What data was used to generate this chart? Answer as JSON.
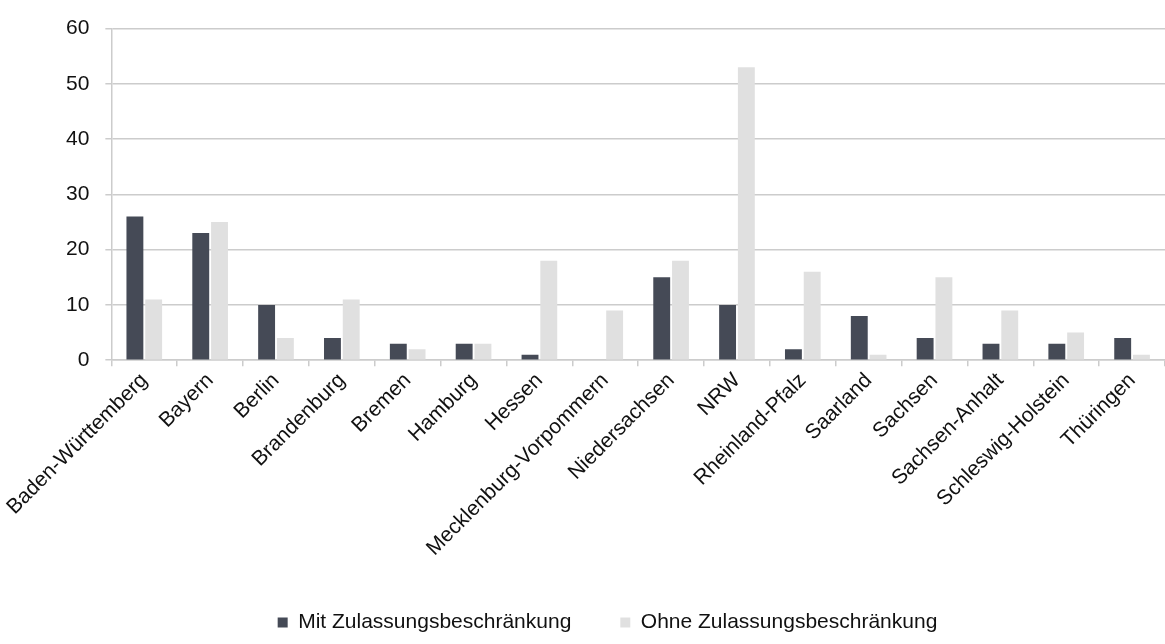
{
  "chart_data": {
    "type": "bar",
    "categories": [
      "Baden-Württemberg",
      "Bayern",
      "Berlin",
      "Brandenburg",
      "Bremen",
      "Hamburg",
      "Hessen",
      "Mecklenburg-Vorpommern",
      "Niedersachsen",
      "NRW",
      "Rheinland-Pfalz",
      "Saarland",
      "Sachsen",
      "Sachsen-Anhalt",
      "Schleswig-Holstein",
      "Thüringen"
    ],
    "series": [
      {
        "name": "Mit Zulassungsbeschränkung",
        "color": "#454a56",
        "values": [
          26,
          23,
          10,
          4,
          3,
          3,
          1,
          0,
          15,
          10,
          2,
          8,
          4,
          3,
          3,
          4
        ]
      },
      {
        "name": "Ohne Zulassungsbeschränkung",
        "color": "#e0e0e0",
        "values": [
          11,
          25,
          4,
          11,
          2,
          3,
          18,
          9,
          18,
          53,
          16,
          1,
          15,
          9,
          5,
          1
        ]
      }
    ],
    "ylim": [
      0,
      60
    ],
    "yticks": [
      0,
      10,
      20,
      30,
      40,
      50,
      60
    ],
    "grid": "y",
    "legend": "bottom"
  }
}
